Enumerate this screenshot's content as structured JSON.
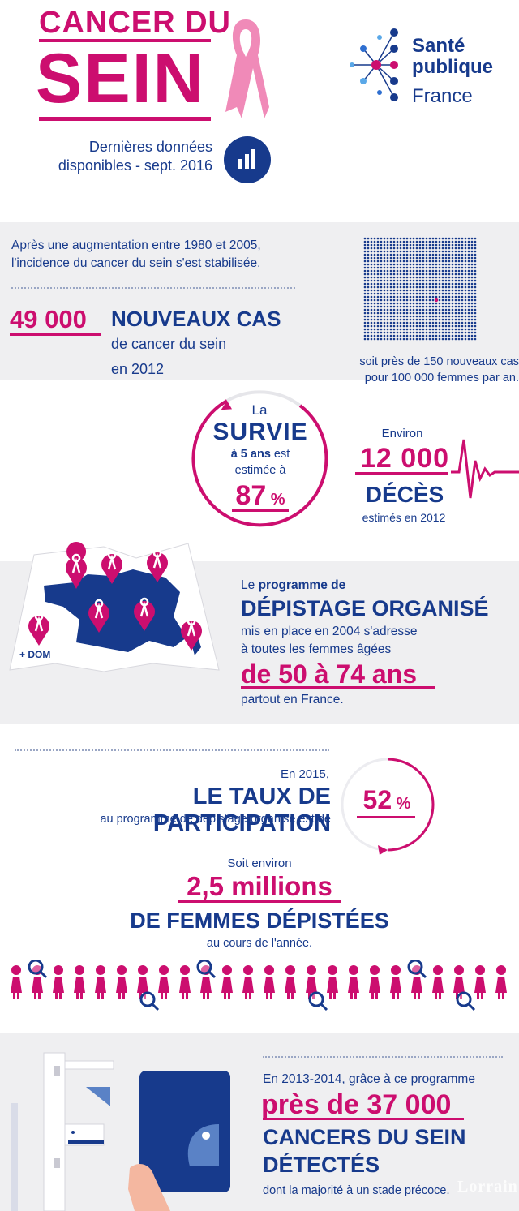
{
  "header": {
    "title_line1": "CANCER DU",
    "title_line2": "SEIN",
    "subtitle_line1": "Dernières données",
    "subtitle_line2": "disponibles - sept. 2016",
    "logo": {
      "line1": "Santé",
      "line2": "publique",
      "line3": "France"
    }
  },
  "incidence": {
    "intro_line1": "Après une augmentation entre 1980 et 2005,",
    "intro_line2": "l'incidence du cancer du sein s'est stabilisée.",
    "number": "49 000",
    "heading": "NOUVEAUX CAS",
    "sub1": "de cancer du sein",
    "sub2": "en 2012",
    "right_line1": "soit près de 150 nouveaux cas",
    "right_line2": "pour 100 000 femmes par an."
  },
  "survival": {
    "la": "La",
    "heading": "SURVIE",
    "bold_part": "à 5 ans",
    "rest1": " est",
    "rest2": "estimée à",
    "value": "87",
    "unit": " %"
  },
  "deaths": {
    "environ": "Environ",
    "number": "12 000",
    "heading": "DÉCÈS",
    "sub": "estimés en 2012"
  },
  "screening": {
    "le": "Le ",
    "bold": "programme de",
    "heading": "DÉPISTAGE ORGANISÉ",
    "line1": "mis en place en 2004 s'adresse",
    "line2": "à toutes les femmes âgées",
    "age": "de 50 à 74 ans",
    "line3": "partout en France.",
    "dom_label": "+ DOM"
  },
  "participation": {
    "year": "En 2015,",
    "heading": "LE TAUX DE PARTICIPATION",
    "sub": "au programme de dépistage organisé est de",
    "value": "52",
    "unit": " %",
    "soit": "Soit environ",
    "count": "2,5 millions",
    "heading2": "DE FEMMES DÉPISTÉES",
    "cours": "au cours de l'année."
  },
  "detected": {
    "intro": "En 2013-2014, grâce à ce programme",
    "number": "près de 37 000",
    "heading1": "CANCERS DU SEIN",
    "heading2": "DÉTECTÉS",
    "sub": "dont la majorité à un stade précoce.",
    "watermark": "Lorrain"
  },
  "colors": {
    "pink": "#cc0e6f",
    "navy": "#173a8c",
    "gray_bg": "#efeff1"
  }
}
